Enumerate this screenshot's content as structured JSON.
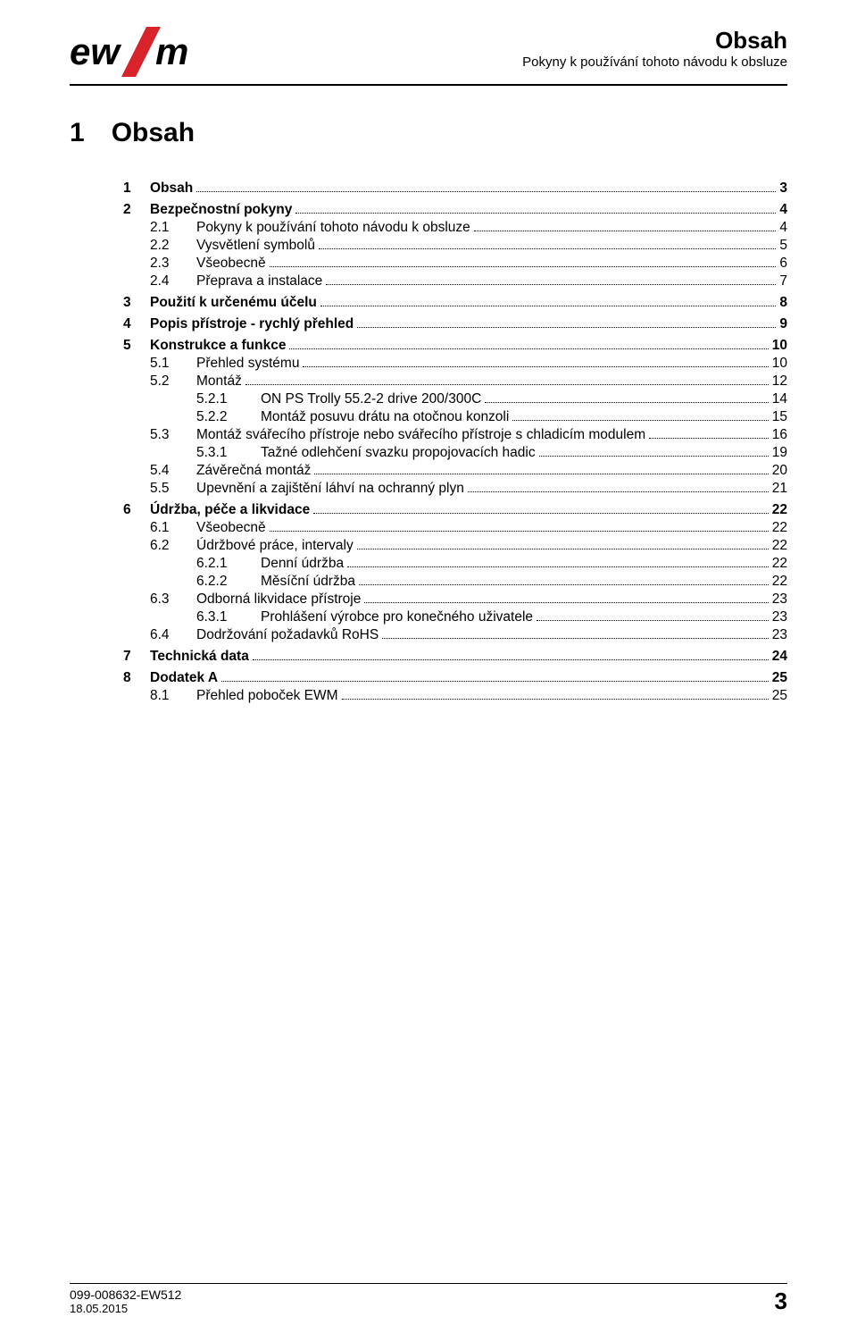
{
  "header": {
    "title": "Obsah",
    "subtitle": "Pokyny k používání tohoto návodu k obsluze"
  },
  "section": {
    "number": "1",
    "title": "Obsah"
  },
  "toc": [
    {
      "lvl": 0,
      "num": "1",
      "label": "Obsah",
      "page": "3",
      "bold": true,
      "gap": false
    },
    {
      "lvl": 0,
      "num": "2",
      "label": "Bezpečnostní pokyny",
      "page": "4",
      "bold": true,
      "gap": true
    },
    {
      "lvl": 1,
      "num": "2.1",
      "label": "Pokyny k používání tohoto návodu k obsluze",
      "page": "4",
      "bold": false,
      "gap": false
    },
    {
      "lvl": 1,
      "num": "2.2",
      "label": "Vysvětlení symbolů",
      "page": "5",
      "bold": false,
      "gap": false
    },
    {
      "lvl": 1,
      "num": "2.3",
      "label": "Všeobecně",
      "page": "6",
      "bold": false,
      "gap": false
    },
    {
      "lvl": 1,
      "num": "2.4",
      "label": "Přeprava a instalace",
      "page": "7",
      "bold": false,
      "gap": false
    },
    {
      "lvl": 0,
      "num": "3",
      "label": "Použití k určenému účelu",
      "page": "8",
      "bold": true,
      "gap": true
    },
    {
      "lvl": 0,
      "num": "4",
      "label": "Popis přístroje - rychlý přehled",
      "page": "9",
      "bold": true,
      "gap": true
    },
    {
      "lvl": 0,
      "num": "5",
      "label": "Konstrukce a funkce",
      "page": "10",
      "bold": true,
      "gap": true
    },
    {
      "lvl": 1,
      "num": "5.1",
      "label": "Přehled systému",
      "page": "10",
      "bold": false,
      "gap": false
    },
    {
      "lvl": 1,
      "num": "5.2",
      "label": "Montáž",
      "page": "12",
      "bold": false,
      "gap": false
    },
    {
      "lvl": 2,
      "num": "5.2.1",
      "label": "ON PS Trolly 55.2-2 drive 200/300C",
      "page": "14",
      "bold": false,
      "gap": false
    },
    {
      "lvl": 2,
      "num": "5.2.2",
      "label": "Montáž posuvu drátu na otočnou konzoli",
      "page": "15",
      "bold": false,
      "gap": false
    },
    {
      "lvl": 1,
      "num": "5.3",
      "label": "Montáž svářecího přístroje nebo svářecího přístroje s chladicím modulem",
      "page": "16",
      "bold": false,
      "gap": false
    },
    {
      "lvl": 2,
      "num": "5.3.1",
      "label": "Tažné odlehčení svazku propojovacích hadic",
      "page": "19",
      "bold": false,
      "gap": false
    },
    {
      "lvl": 1,
      "num": "5.4",
      "label": "Závěrečná montáž",
      "page": "20",
      "bold": false,
      "gap": false
    },
    {
      "lvl": 1,
      "num": "5.5",
      "label": "Upevnění a zajištění láhví na ochranný plyn",
      "page": "21",
      "bold": false,
      "gap": false
    },
    {
      "lvl": 0,
      "num": "6",
      "label": "Údržba, péče a likvidace",
      "page": "22",
      "bold": true,
      "gap": true
    },
    {
      "lvl": 1,
      "num": "6.1",
      "label": "Všeobecně",
      "page": "22",
      "bold": false,
      "gap": false
    },
    {
      "lvl": 1,
      "num": "6.2",
      "label": "Údržbové práce, intervaly",
      "page": "22",
      "bold": false,
      "gap": false
    },
    {
      "lvl": 2,
      "num": "6.2.1",
      "label": "Denní údržba",
      "page": "22",
      "bold": false,
      "gap": false
    },
    {
      "lvl": 2,
      "num": "6.2.2",
      "label": "Měsíční údržba",
      "page": "22",
      "bold": false,
      "gap": false
    },
    {
      "lvl": 1,
      "num": "6.3",
      "label": "Odborná likvidace přístroje",
      "page": "23",
      "bold": false,
      "gap": false
    },
    {
      "lvl": 2,
      "num": "6.3.1",
      "label": "Prohlášení výrobce pro konečného uživatele",
      "page": "23",
      "bold": false,
      "gap": false
    },
    {
      "lvl": 1,
      "num": "6.4",
      "label": "Dodržování požadavků RoHS",
      "page": "23",
      "bold": false,
      "gap": false
    },
    {
      "lvl": 0,
      "num": "7",
      "label": "Technická data",
      "page": "24",
      "bold": true,
      "gap": true
    },
    {
      "lvl": 0,
      "num": "8",
      "label": "Dodatek A",
      "page": "25",
      "bold": true,
      "gap": true
    },
    {
      "lvl": 1,
      "num": "8.1",
      "label": "Přehled poboček EWM",
      "page": "25",
      "bold": false,
      "gap": false
    }
  ],
  "footer": {
    "code": "099-008632-EW512",
    "date": "18.05.2015",
    "page": "3"
  },
  "colors": {
    "brand_red": "#d8232a",
    "text": "#000000",
    "bg": "#ffffff"
  }
}
